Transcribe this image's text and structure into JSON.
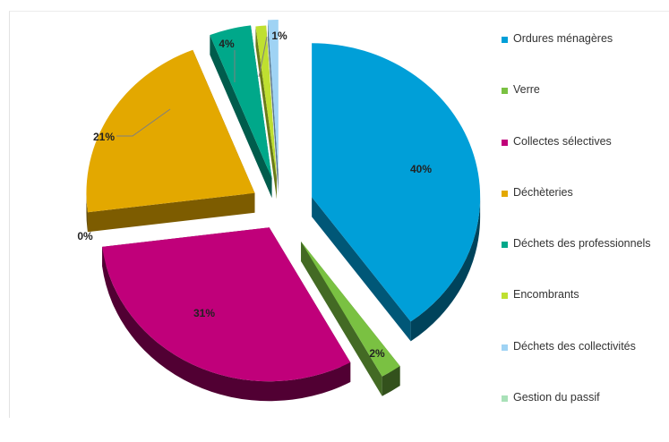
{
  "chart_data": {
    "type": "pie",
    "title": "",
    "categories": [
      "Ordures ménagères",
      "Verre",
      "Collectes sélectives",
      "Déchèteries",
      "Déchets des professionnels",
      "Encombrants",
      "Déchets des collectivités",
      "Gestion du passif"
    ],
    "values": [
      40,
      2,
      31,
      21,
      4,
      1,
      1,
      0
    ],
    "data_labels": [
      "40%",
      "2%",
      "31%",
      "21%",
      "4%",
      "",
      "1%",
      "0%"
    ],
    "colors": [
      "#009fd8",
      "#7ac142",
      "#c0007a",
      "#e3a800",
      "#00a88a",
      "#bfe030",
      "#9fd3f4",
      "#a9e1b8"
    ],
    "legend_placement": "right",
    "exploded": true,
    "three_d": true
  }
}
